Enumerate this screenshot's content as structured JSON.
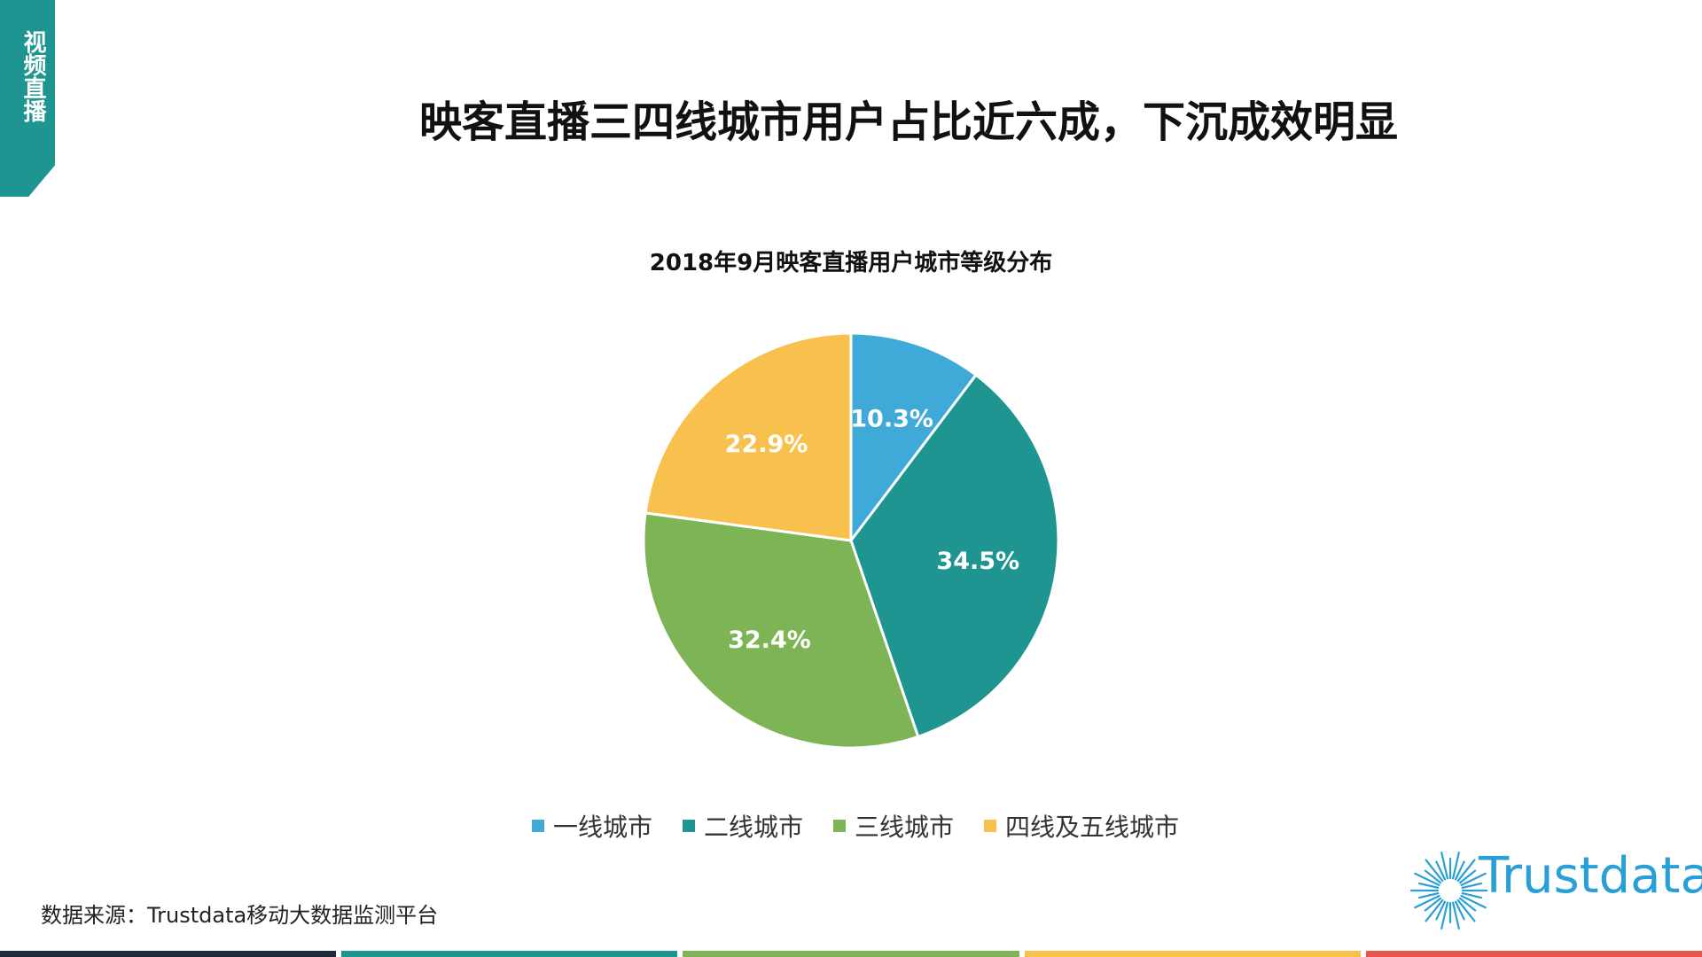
{
  "side_tab": {
    "label": "视频直播",
    "color": "#1e9591"
  },
  "page_title": "映客直播三四线城市用户占比近六成，下沉成效明显",
  "chart_data": {
    "type": "pie",
    "title": "2018年9月映客直播用户城市等级分布",
    "start_angle_deg": 0,
    "direction": "clockwise",
    "slices": [
      {
        "name": "一线城市",
        "value": 10.3,
        "label": "10.3%",
        "color": "#3fa9d8"
      },
      {
        "name": "二线城市",
        "value": 34.5,
        "label": "34.5%",
        "color": "#1e9591"
      },
      {
        "name": "三线城市",
        "value": 32.4,
        "label": "32.4%",
        "color": "#7db456"
      },
      {
        "name": "四线及五线城市",
        "value": 22.9,
        "label": "22.9%",
        "color": "#f8c14d"
      }
    ],
    "legend_position": "bottom"
  },
  "source": "数据来源：Trustdata移动大数据监测平台",
  "logo": {
    "text": "Trustdata",
    "color": "#2a9fd6"
  },
  "bottom_bar_colors": [
    "#1f2b3a",
    "#1e9591",
    "#7db456",
    "#f8c14d",
    "#e8574b"
  ]
}
